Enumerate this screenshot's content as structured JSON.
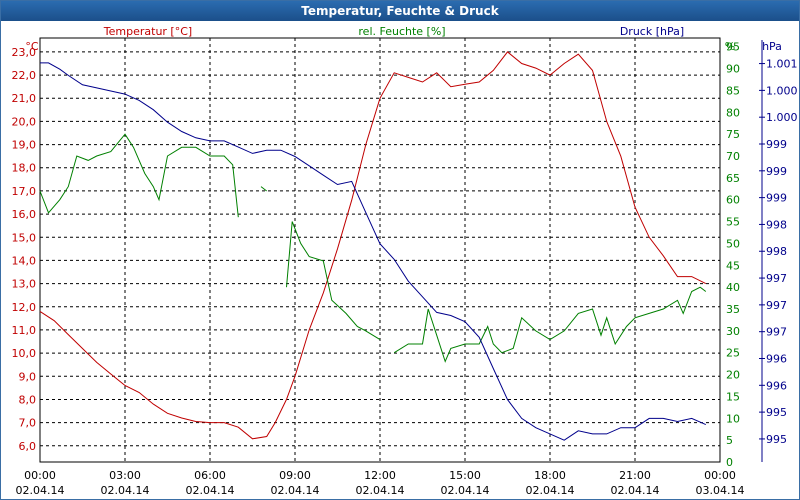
{
  "window": {
    "title": "Temperatur, Feuchte & Druck"
  },
  "colors": {
    "temperature": "#c00000",
    "humidity": "#008000",
    "pressure": "#00008b"
  },
  "chart_data": {
    "type": "line",
    "title": "Temperatur, Feuchte & Druck",
    "x_labels": [
      {
        "time": "00:00",
        "date": "02.04.14"
      },
      {
        "time": "03:00",
        "date": "02.04.14"
      },
      {
        "time": "06:00",
        "date": "02.04.14"
      },
      {
        "time": "09:00",
        "date": "02.04.14"
      },
      {
        "time": "12:00",
        "date": "02.04.14"
      },
      {
        "time": "15:00",
        "date": "02.04.14"
      },
      {
        "time": "18:00",
        "date": "02.04.14"
      },
      {
        "time": "21:00",
        "date": "02.04.14"
      },
      {
        "time": "00:00",
        "date": "03.04.14"
      }
    ],
    "xlim": [
      0,
      24
    ],
    "axes": {
      "temperature": {
        "label": "Temperatur [°C]",
        "unit": "°C",
        "ylim": [
          5.3,
          23.6
        ],
        "ticks": [
          "6,0",
          "7,0",
          "8,0",
          "9,0",
          "10,0",
          "11,0",
          "12,0",
          "13,0",
          "14,0",
          "15,0",
          "16,0",
          "17,0",
          "18,0",
          "19,0",
          "20,0",
          "21,0",
          "22,0",
          "23,0"
        ],
        "tick_values": [
          6,
          7,
          8,
          9,
          10,
          11,
          12,
          13,
          14,
          15,
          16,
          17,
          18,
          19,
          20,
          21,
          22,
          23
        ]
      },
      "humidity": {
        "label": "rel. Feuchte [%]",
        "unit": "%",
        "ylim": [
          0,
          97
        ],
        "ticks": [
          "0",
          "5",
          "10",
          "15",
          "20",
          "25",
          "30",
          "35",
          "40",
          "45",
          "50",
          "55",
          "60",
          "65",
          "70",
          "75",
          "80",
          "85",
          "90",
          "95"
        ],
        "tick_values": [
          0,
          5,
          10,
          15,
          20,
          25,
          30,
          35,
          40,
          45,
          50,
          55,
          60,
          65,
          70,
          75,
          80,
          85,
          90,
          95
        ]
      },
      "pressure": {
        "label": "Druck [hPa]",
        "unit": "hPa",
        "ylim": [
          994.6,
          1001.4
        ],
        "ticks": [
          "995",
          "995",
          "996",
          "996",
          "997",
          "997",
          "997",
          "998",
          "998",
          "999",
          "999",
          "999",
          "1.000",
          "1.000",
          "1.001"
        ],
        "tick_values": [
          994.97,
          995.4,
          995.83,
          996.26,
          996.69,
          997.12,
          997.55,
          997.98,
          998.41,
          998.84,
          999.27,
          999.7,
          1000.13,
          1000.56,
          1000.99
        ]
      }
    },
    "series": [
      {
        "name": "Temperatur [°C]",
        "axis": "temperature",
        "color": "#c00000",
        "segments": [
          [
            [
              0,
              11.8
            ],
            [
              0.5,
              11.4
            ],
            [
              1,
              10.8
            ],
            [
              1.5,
              10.2
            ],
            [
              2,
              9.6
            ],
            [
              2.5,
              9.1
            ],
            [
              3,
              8.6
            ],
            [
              3.5,
              8.3
            ],
            [
              4,
              7.8
            ],
            [
              4.5,
              7.4
            ],
            [
              5,
              7.2
            ],
            [
              5.5,
              7.05
            ],
            [
              6,
              7.0
            ],
            [
              6.5,
              7.0
            ],
            [
              7,
              6.8
            ],
            [
              7.5,
              6.3
            ],
            [
              8,
              6.4
            ],
            [
              8.3,
              7.0
            ],
            [
              8.7,
              8.0
            ],
            [
              9,
              9.0
            ],
            [
              9.5,
              11.0
            ],
            [
              10,
              12.6
            ],
            [
              10.5,
              14.5
            ],
            [
              11,
              16.6
            ],
            [
              11.5,
              19.0
            ],
            [
              12,
              21.0
            ],
            [
              12.5,
              22.1
            ],
            [
              13,
              21.9
            ],
            [
              13.5,
              21.7
            ],
            [
              14,
              22.1
            ],
            [
              14.5,
              21.5
            ],
            [
              15,
              21.6
            ],
            [
              15.5,
              21.7
            ],
            [
              16,
              22.2
            ],
            [
              16.5,
              23.0
            ],
            [
              17,
              22.5
            ],
            [
              17.5,
              22.3
            ],
            [
              18,
              22.0
            ],
            [
              18.5,
              22.5
            ],
            [
              19,
              22.9
            ],
            [
              19.5,
              22.2
            ],
            [
              20,
              20.0
            ],
            [
              20.5,
              18.5
            ],
            [
              21,
              16.3
            ],
            [
              21.5,
              15.0
            ],
            [
              22,
              14.2
            ],
            [
              22.5,
              13.3
            ],
            [
              23,
              13.3
            ],
            [
              23.5,
              13.0
            ]
          ]
        ]
      },
      {
        "name": "rel. Feuchte [%]",
        "axis": "humidity",
        "color": "#008000",
        "segments": [
          [
            [
              0,
              62
            ],
            [
              0.3,
              57
            ],
            [
              0.7,
              60
            ],
            [
              1,
              63
            ],
            [
              1.3,
              70
            ],
            [
              1.7,
              69
            ],
            [
              2,
              70
            ],
            [
              2.5,
              71
            ],
            [
              3,
              75
            ],
            [
              3.3,
              72
            ],
            [
              3.7,
              66
            ],
            [
              4,
              63
            ],
            [
              4.2,
              60
            ],
            [
              4.5,
              70
            ],
            [
              5,
              72
            ],
            [
              5.5,
              72
            ],
            [
              6,
              70
            ],
            [
              6.5,
              70
            ],
            [
              6.8,
              68
            ],
            [
              7,
              56
            ]
          ],
          [
            [
              7.8,
              63
            ],
            [
              8,
              62
            ]
          ],
          [
            [
              8.7,
              40
            ],
            [
              8.9,
              55
            ],
            [
              9.2,
              50
            ],
            [
              9.5,
              47
            ],
            [
              10,
              46
            ],
            [
              10.3,
              37
            ],
            [
              10.8,
              34
            ],
            [
              11.2,
              31
            ],
            [
              11.5,
              30
            ],
            [
              12,
              28
            ]
          ],
          [
            [
              12.5,
              25
            ],
            [
              13,
              27
            ],
            [
              13.5,
              27
            ],
            [
              13.7,
              35
            ],
            [
              14,
              29
            ],
            [
              14.3,
              23
            ],
            [
              14.5,
              26
            ],
            [
              15,
              27
            ],
            [
              15.5,
              27
            ],
            [
              15.8,
              31
            ],
            [
              16,
              27
            ],
            [
              16.3,
              25
            ],
            [
              16.7,
              26
            ],
            [
              17,
              33
            ],
            [
              17.5,
              30
            ],
            [
              18,
              28
            ],
            [
              18.5,
              30
            ],
            [
              19,
              34
            ],
            [
              19.5,
              35
            ],
            [
              19.8,
              29
            ],
            [
              20,
              33
            ],
            [
              20.3,
              27
            ],
            [
              20.7,
              31
            ],
            [
              21,
              33
            ],
            [
              21.5,
              34
            ],
            [
              22,
              35
            ],
            [
              22.5,
              37
            ],
            [
              22.7,
              34
            ],
            [
              23,
              39
            ],
            [
              23.3,
              40
            ],
            [
              23.5,
              39
            ]
          ]
        ]
      },
      {
        "name": "Druck [hPa]",
        "axis": "pressure",
        "color": "#00008b",
        "segments": [
          [
            [
              0,
              1001.0
            ],
            [
              0.3,
              1001.0
            ],
            [
              0.7,
              1000.9
            ],
            [
              1,
              1000.8
            ],
            [
              1.5,
              1000.65
            ],
            [
              2,
              1000.6
            ],
            [
              2.5,
              1000.55
            ],
            [
              3,
              1000.5
            ],
            [
              3.5,
              1000.4
            ],
            [
              4,
              1000.25
            ],
            [
              4.5,
              1000.05
            ],
            [
              5,
              999.9
            ],
            [
              5.5,
              999.8
            ],
            [
              6,
              999.75
            ],
            [
              6.5,
              999.75
            ],
            [
              7,
              999.65
            ],
            [
              7.5,
              999.55
            ],
            [
              8,
              999.6
            ],
            [
              8.5,
              999.6
            ],
            [
              9,
              999.5
            ],
            [
              9.5,
              999.35
            ],
            [
              10,
              999.2
            ],
            [
              10.5,
              999.05
            ],
            [
              11,
              999.1
            ],
            [
              11.5,
              998.6
            ],
            [
              12,
              998.1
            ],
            [
              12.5,
              997.85
            ],
            [
              13,
              997.5
            ],
            [
              13.5,
              997.25
            ],
            [
              14,
              997.0
            ],
            [
              14.5,
              996.95
            ],
            [
              15,
              996.85
            ],
            [
              15.5,
              996.6
            ],
            [
              16,
              996.1
            ],
            [
              16.5,
              995.6
            ],
            [
              17,
              995.3
            ],
            [
              17.5,
              995.15
            ],
            [
              18,
              995.05
            ],
            [
              18.5,
              994.95
            ],
            [
              19,
              995.1
            ],
            [
              19.5,
              995.05
            ],
            [
              20,
              995.05
            ],
            [
              20.5,
              995.15
            ],
            [
              21,
              995.15
            ],
            [
              21.5,
              995.3
            ],
            [
              22,
              995.3
            ],
            [
              22.5,
              995.25
            ],
            [
              23,
              995.3
            ],
            [
              23.5,
              995.2
            ]
          ]
        ]
      }
    ]
  }
}
